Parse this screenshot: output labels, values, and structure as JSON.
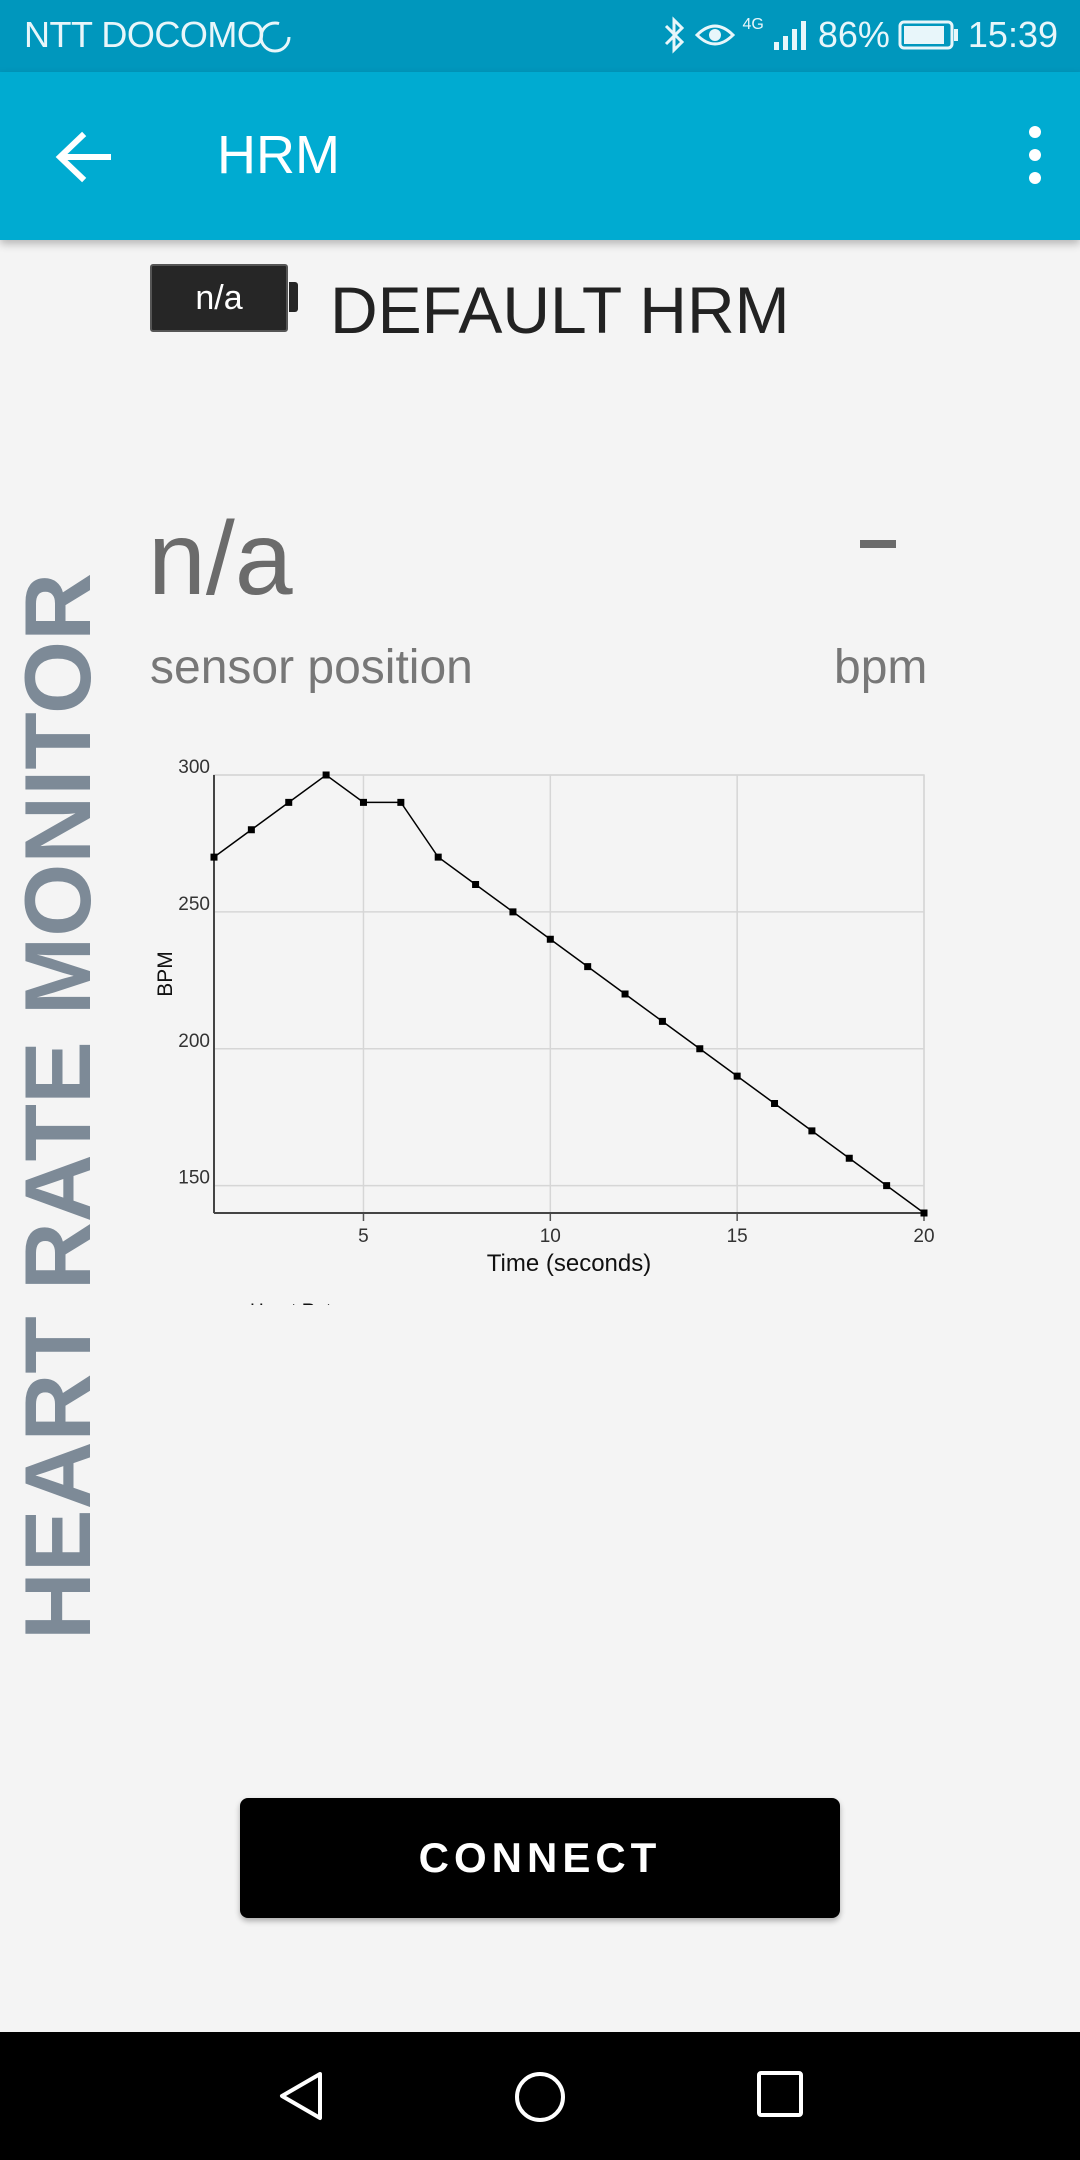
{
  "status_bar": {
    "carrier": "NTT DOCOMO",
    "network": "4G",
    "battery": "86%",
    "time": "15:39",
    "icons": [
      "loading-icon",
      "bluetooth-icon",
      "eye-icon",
      "signal-icon",
      "battery-icon"
    ]
  },
  "app_bar": {
    "title": "HRM",
    "back_icon": "arrow-back-icon",
    "menu_icon": "more-vert-icon"
  },
  "device": {
    "battery_label": "n/a",
    "name": "DEFAULT HRM"
  },
  "side_label": "HEART RATE MONITOR",
  "sensor": {
    "value": "n/a",
    "label": "sensor position"
  },
  "bpm": {
    "value": "–",
    "label": "bpm"
  },
  "chart_data": {
    "type": "line",
    "title": "",
    "xlabel": "Time (seconds)",
    "ylabel": "BPM",
    "x_ticks": [
      5,
      10,
      15,
      20
    ],
    "y_ticks": [
      150,
      200,
      250,
      300
    ],
    "xlim": [
      1,
      20
    ],
    "ylim": [
      140,
      300
    ],
    "grid": true,
    "legend": "bottom-left",
    "series": [
      {
        "name": "Heart Rate",
        "x": [
          1,
          2,
          3,
          4,
          5,
          6,
          7,
          8,
          9,
          10,
          11,
          12,
          13,
          14,
          15,
          16,
          17,
          18,
          19,
          20
        ],
        "values": [
          270,
          280,
          290,
          300,
          290,
          290,
          270,
          260,
          250,
          240,
          230,
          220,
          210,
          200,
          190,
          180,
          170,
          160,
          150,
          140
        ]
      }
    ],
    "colors": {
      "line": "#000000",
      "grid": "#d6d6d6"
    }
  },
  "connect_button": {
    "label": "CONNECT"
  },
  "nav_bar": {
    "icons": [
      "back-triangle-icon",
      "home-circle-icon",
      "recents-square-icon"
    ]
  }
}
